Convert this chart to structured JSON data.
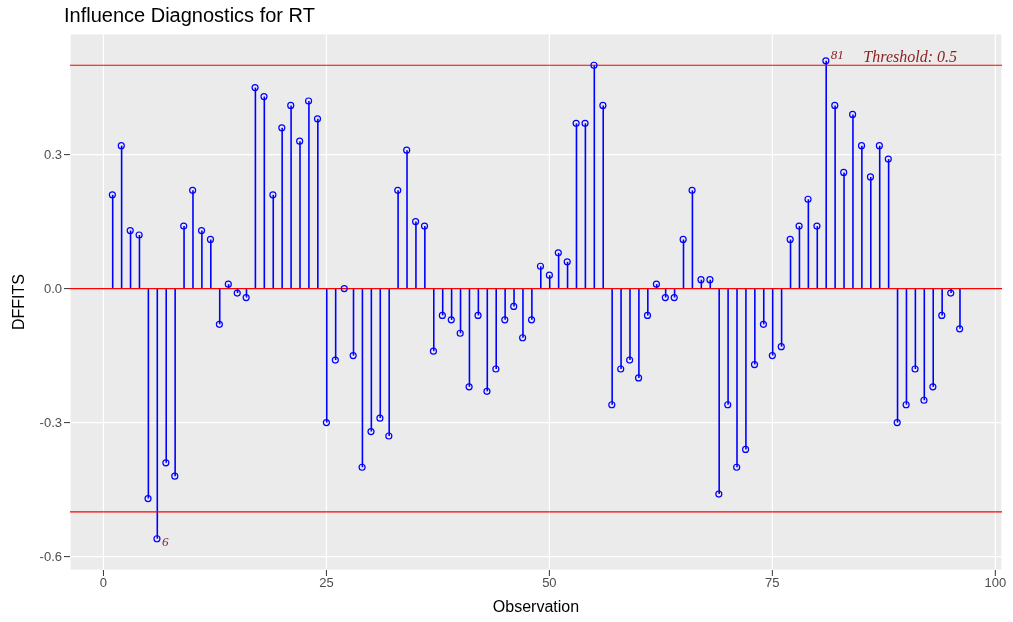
{
  "chart_data": {
    "type": "lollipop",
    "title": "Influence Diagnostics for RT",
    "xlabel": "Observation",
    "ylabel": "DFFITS",
    "x": [
      1,
      2,
      3,
      4,
      5,
      6,
      7,
      8,
      9,
      10,
      11,
      12,
      13,
      14,
      15,
      16,
      17,
      18,
      19,
      20,
      21,
      22,
      23,
      24,
      25,
      26,
      27,
      28,
      29,
      30,
      31,
      32,
      33,
      34,
      35,
      36,
      37,
      38,
      39,
      40,
      41,
      42,
      43,
      44,
      45,
      46,
      47,
      48,
      49,
      50,
      51,
      52,
      53,
      54,
      55,
      56,
      57,
      58,
      59,
      60,
      61,
      62,
      63,
      64,
      65,
      66,
      67,
      68,
      69,
      70,
      71,
      72,
      73,
      74,
      75,
      76,
      77,
      78,
      79,
      80,
      81,
      82,
      83,
      84,
      85,
      86,
      87,
      88,
      89,
      90,
      91,
      92,
      93,
      94,
      95,
      96
    ],
    "series": [
      {
        "color": "#0000ff",
        "values": [
          0.21,
          0.32,
          0.13,
          0.12,
          -0.47,
          -0.56,
          -0.39,
          -0.42,
          0.14,
          0.22,
          0.13,
          0.11,
          -0.08,
          0.01,
          -0.01,
          -0.02,
          0.45,
          0.43,
          0.21,
          0.36,
          0.41,
          0.33,
          0.42,
          0.38,
          -0.3,
          -0.16,
          0.0,
          -0.15,
          -0.4,
          -0.32,
          -0.29,
          -0.33,
          0.22,
          0.31,
          0.15,
          0.14,
          -0.14,
          -0.06,
          -0.07,
          -0.1,
          -0.22,
          -0.06,
          -0.23,
          -0.18,
          -0.07,
          -0.04,
          -0.11,
          -0.07,
          0.05,
          0.03,
          0.08,
          0.06,
          0.37,
          0.37,
          0.5,
          0.41,
          -0.26,
          -0.18,
          -0.16,
          -0.2,
          -0.06,
          0.01,
          -0.02,
          -0.02,
          0.11,
          0.22,
          0.02,
          0.02,
          -0.46,
          -0.26,
          -0.4,
          -0.36,
          -0.17,
          -0.08,
          -0.15,
          -0.13,
          0.11,
          0.14,
          0.2,
          0.14,
          0.51,
          0.41,
          0.26,
          0.39,
          0.32,
          0.25,
          0.32,
          0.29,
          -0.3,
          -0.26,
          -0.18,
          -0.25,
          -0.22,
          -0.06,
          -0.01,
          -0.09
        ]
      }
    ],
    "xlim": [
      -3.75,
      100.75
    ],
    "xticks": [
      0,
      25,
      50,
      75,
      100
    ],
    "ylim": [
      -0.63,
      0.57
    ],
    "yticks": [
      {
        "value": -0.6,
        "label": "-0.6"
      },
      {
        "value": -0.3,
        "label": "-0.3"
      },
      {
        "value": 0,
        "label": "0.0"
      },
      {
        "value": 0.3,
        "label": "0.3"
      }
    ],
    "ref_lines": [
      {
        "axis": "y",
        "value": 0.5,
        "label": "Threshold: 0.5",
        "color": "#ff0000"
      },
      {
        "axis": "y",
        "value": -0.5,
        "color": "#ff0000"
      },
      {
        "axis": "y",
        "value": 0,
        "color": "#ff0000"
      }
    ],
    "annotations": [
      {
        "text": "6",
        "x": 6,
        "y": -0.56
      },
      {
        "text": "81",
        "x": 81,
        "y": 0.51
      }
    ],
    "marker": "circle",
    "grid": true
  }
}
